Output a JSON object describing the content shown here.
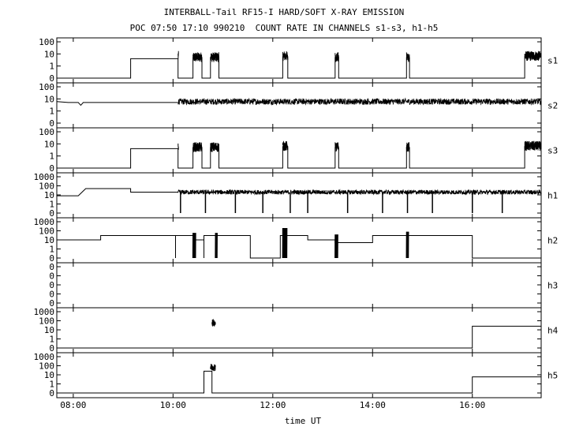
{
  "header": {
    "title": "INTERBALL-Tail RF15-I HARD/SOFT X-RAY EMISSION",
    "subtitle": "POC 07:50 17:10 990210  COUNT RATE IN CHANNELS s1-s3, h1-h5"
  },
  "chart_data": {
    "type": "line",
    "xlabel": "time UT",
    "x_unit": "hours UT",
    "xlim": [
      7.67,
      17.38
    ],
    "x_ticks": [
      {
        "value": 8,
        "label": "08:00"
      },
      {
        "value": 10,
        "label": "10:00"
      },
      {
        "value": 12,
        "label": "12:00"
      },
      {
        "value": 14,
        "label": "14:00"
      },
      {
        "value": 16,
        "label": "16:00"
      }
    ],
    "y_scale": "log",
    "colors": {
      "line": "#000000",
      "background": "#ffffff"
    },
    "panels": [
      {
        "name": "s1",
        "ylim": [
          0,
          100
        ],
        "y_ticks": [
          "0",
          "1",
          "10",
          "100"
        ],
        "segments": [
          [
            7.67,
            0
          ],
          [
            9.15,
            0
          ],
          [
            9.15,
            4
          ],
          [
            10.1,
            4
          ],
          [
            10.1,
            0
          ],
          [
            10.4,
            0
          ],
          [
            10.4,
            5
          ],
          [
            10.58,
            5
          ],
          [
            10.58,
            0
          ],
          [
            10.75,
            0
          ],
          [
            10.75,
            5
          ],
          [
            10.92,
            5
          ],
          [
            10.92,
            0
          ],
          [
            12.2,
            0
          ],
          [
            12.2,
            6
          ],
          [
            12.3,
            6
          ],
          [
            12.3,
            0
          ],
          [
            13.25,
            0
          ],
          [
            13.25,
            5
          ],
          [
            13.32,
            5
          ],
          [
            13.32,
            0
          ],
          [
            14.68,
            0
          ],
          [
            14.68,
            5
          ],
          [
            14.74,
            5
          ],
          [
            14.74,
            0
          ],
          [
            17.05,
            0
          ],
          [
            17.05,
            6
          ],
          [
            17.38,
            6
          ]
        ],
        "bursts": [
          [
            10.1,
            10.11,
            10
          ],
          [
            10.4,
            10.58,
            8
          ],
          [
            10.75,
            10.92,
            8
          ],
          [
            12.2,
            12.3,
            10
          ],
          [
            13.25,
            13.32,
            8
          ],
          [
            14.68,
            14.74,
            8
          ],
          [
            17.05,
            17.38,
            10
          ]
        ]
      },
      {
        "name": "s2",
        "ylim": [
          0,
          100
        ],
        "y_ticks": [
          "0",
          "1",
          "10",
          "100"
        ],
        "segments": [
          [
            7.67,
            6
          ],
          [
            7.9,
            5
          ],
          [
            8.1,
            5
          ],
          [
            8.15,
            3
          ],
          [
            8.2,
            5
          ],
          [
            10.1,
            5
          ]
        ],
        "noise": {
          "from": 10.1,
          "to": 17.38,
          "level": 6
        }
      },
      {
        "name": "s3",
        "ylim": [
          0,
          100
        ],
        "y_ticks": [
          "0",
          "1",
          "10",
          "100"
        ],
        "segments": [
          [
            7.67,
            0
          ],
          [
            9.15,
            0
          ],
          [
            9.15,
            4
          ],
          [
            10.1,
            4
          ],
          [
            10.1,
            0
          ],
          [
            10.4,
            0
          ],
          [
            10.4,
            5
          ],
          [
            10.58,
            5
          ],
          [
            10.58,
            0
          ],
          [
            10.75,
            0
          ],
          [
            10.75,
            5
          ],
          [
            10.92,
            5
          ],
          [
            10.92,
            0
          ],
          [
            12.2,
            0
          ],
          [
            12.2,
            6
          ],
          [
            12.3,
            6
          ],
          [
            12.3,
            0
          ],
          [
            13.25,
            0
          ],
          [
            13.25,
            5
          ],
          [
            13.32,
            5
          ],
          [
            13.32,
            0
          ],
          [
            14.68,
            0
          ],
          [
            14.68,
            5
          ],
          [
            14.74,
            5
          ],
          [
            14.74,
            0
          ],
          [
            17.05,
            0
          ],
          [
            17.05,
            6
          ],
          [
            17.38,
            6
          ]
        ],
        "bursts": [
          [
            10.1,
            10.11,
            10
          ],
          [
            10.4,
            10.58,
            8
          ],
          [
            10.75,
            10.92,
            8
          ],
          [
            12.2,
            12.3,
            10
          ],
          [
            13.25,
            13.32,
            8
          ],
          [
            14.68,
            14.74,
            8
          ],
          [
            17.05,
            17.38,
            10
          ]
        ]
      },
      {
        "name": "h1",
        "ylim": [
          0,
          1000
        ],
        "y_ticks": [
          "0",
          "1",
          "10",
          "100",
          "1000"
        ],
        "segments": [
          [
            7.67,
            8
          ],
          [
            8.1,
            8
          ],
          [
            8.25,
            50
          ],
          [
            9.15,
            50
          ],
          [
            9.15,
            20
          ],
          [
            10.1,
            20
          ]
        ],
        "noise": {
          "from": 10.1,
          "to": 17.38,
          "level": 20
        },
        "dips": [
          10.15,
          10.65,
          11.25,
          11.8,
          12.35,
          12.7,
          13.5,
          14.2,
          14.7,
          15.2,
          16.0,
          16.6
        ]
      },
      {
        "name": "h2",
        "ylim": [
          0,
          1000
        ],
        "y_ticks": [
          "0",
          "1",
          "10",
          "100",
          "1000"
        ],
        "segments": [
          [
            7.67,
            10
          ],
          [
            8.55,
            10
          ],
          [
            8.55,
            30
          ],
          [
            10.05,
            30
          ],
          [
            10.05,
            0
          ],
          [
            10.05,
            30
          ],
          [
            10.45,
            30
          ],
          [
            10.45,
            10
          ],
          [
            10.62,
            10
          ],
          [
            10.62,
            0
          ],
          [
            10.62,
            30
          ],
          [
            11.55,
            30
          ],
          [
            11.55,
            0
          ],
          [
            12.15,
            0
          ],
          [
            12.15,
            30
          ],
          [
            12.7,
            30
          ],
          [
            12.7,
            10
          ],
          [
            13.25,
            10
          ],
          [
            13.25,
            5
          ],
          [
            14.0,
            5
          ],
          [
            14.0,
            30
          ],
          [
            16.0,
            30
          ],
          [
            16.0,
            0
          ],
          [
            17.38,
            0
          ]
        ],
        "spikes": [
          [
            10.4,
            10.45,
            60
          ],
          [
            10.85,
            10.88,
            60
          ],
          [
            12.2,
            12.28,
            200
          ],
          [
            13.25,
            13.3,
            40
          ],
          [
            14.68,
            14.72,
            80
          ]
        ]
      },
      {
        "name": "h3",
        "ylim": [
          0,
          1000
        ],
        "y_ticks": [
          "0",
          "0",
          "0",
          "0",
          "0"
        ],
        "segments": []
      },
      {
        "name": "h4",
        "ylim": [
          0,
          1000
        ],
        "y_ticks": [
          "0",
          "1",
          "10",
          "100",
          "1000"
        ],
        "segments": [
          [
            7.67,
            0
          ],
          [
            16.0,
            0
          ],
          [
            16.0,
            25
          ],
          [
            17.38,
            25
          ]
        ],
        "bursts": [
          [
            10.78,
            10.85,
            90
          ]
        ]
      },
      {
        "name": "h5",
        "ylim": [
          0,
          1000
        ],
        "y_ticks": [
          "0",
          "1",
          "10",
          "100",
          "1000"
        ],
        "segments": [
          [
            7.67,
            0
          ],
          [
            10.62,
            0
          ],
          [
            10.62,
            25
          ],
          [
            10.78,
            25
          ],
          [
            10.78,
            0
          ],
          [
            16.0,
            0
          ],
          [
            16.0,
            6
          ],
          [
            17.38,
            6
          ]
        ],
        "bursts": [
          [
            10.75,
            10.85,
            100
          ]
        ]
      }
    ]
  }
}
